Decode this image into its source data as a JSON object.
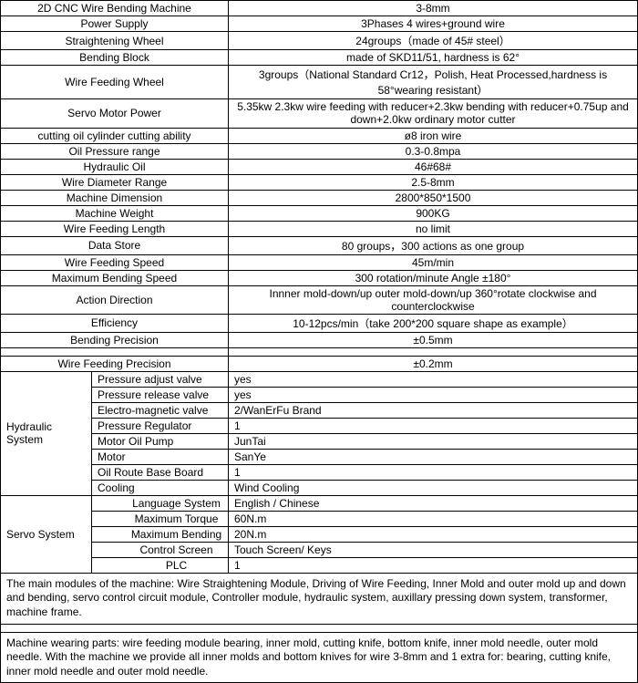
{
  "specs": [
    {
      "label": "2D CNC Wire Bending Machine",
      "value": "3-8mm"
    },
    {
      "label": "Power Supply",
      "value": "3Phases 4 wires+ground wire"
    },
    {
      "label": "Straightening Wheel",
      "value": "24groups（made of 45# steel）"
    },
    {
      "label": "Bending Block",
      "value": "made of SKD11/51, hardness is 62°"
    },
    {
      "label": "Wire Feeding Wheel",
      "value": "3groups（National Standard Cr12，Polish, Heat Processed,hardness is 58°wearing resistant）"
    },
    {
      "label": "Servo Motor Power",
      "value": "5.35kw  2.3kw wire feeding with reducer+2.3kw bending with reducer+0.75up and down+2.0kw ordinary motor cutter"
    },
    {
      "label": "cutting oil cylinder cutting ability",
      "value": "ø8 iron wire"
    },
    {
      "label": "Oil Pressure range",
      "value": "0.3-0.8mpa"
    },
    {
      "label": "Hydraulic Oil",
      "value": "46#68#"
    },
    {
      "label": "Wire Diameter Range",
      "value": "2.5-8mm"
    },
    {
      "label": "Machine Dimension",
      "value": "2800*850*1500"
    },
    {
      "label": "Machine Weight",
      "value": "900KG"
    },
    {
      "label": "Wire Feeding Length",
      "value": "no limit"
    },
    {
      "label": "Data Store",
      "value": "80 groups，300 actions as one group"
    },
    {
      "label": "Wire Feeding Speed",
      "value": "45m/min"
    },
    {
      "label": "Maximum Bending Speed",
      "value": "300 rotation/minute  Angle ±180°"
    },
    {
      "label": "Action Direction",
      "value": "Innner mold-down/up  outer mold-down/up  360°rotate clockwise and counterclockwise"
    },
    {
      "label": "Efficiency",
      "value": "10-12pcs/min（take 200*200 square shape as example）"
    },
    {
      "label": "Bending Precision",
      "value": "±0.5mm"
    },
    {
      "label": "Wire Feeding Precision",
      "value": "±0.2mm"
    }
  ],
  "hydraulic": {
    "title": "Hydraulic System",
    "items": [
      {
        "label": "Pressure adjust valve",
        "value": "yes"
      },
      {
        "label": "Pressure release valve",
        "value": "yes"
      },
      {
        "label": "Electro-magnetic valve",
        "value": "2/WanErFu Brand"
      },
      {
        "label": "Pressure Regulator",
        "value": "1"
      },
      {
        "label": "Motor Oil Pump",
        "value": "JunTai"
      },
      {
        "label": "Motor",
        "value": "SanYe"
      },
      {
        "label": "Oil Route Base Board",
        "value": "1"
      },
      {
        "label": "Cooling",
        "value": "Wind Cooling"
      }
    ]
  },
  "servo": {
    "title": "Servo System",
    "items": [
      {
        "label": "Language System",
        "value": "English / Chinese"
      },
      {
        "label": "Maximum Torque",
        "value": "60N.m"
      },
      {
        "label": "Maximum Bending",
        "value": "20N.m"
      },
      {
        "label": "Control Screen",
        "value": "Touch Screen/  Keys"
      },
      {
        "label": "PLC",
        "value": "1"
      }
    ]
  },
  "descriptions": {
    "modules": "The main modules of the machine: Wire Straightening Module, Driving of Wire Feeding, Inner Mold and outer mold up and down and bending, servo control circuit module, Controller module, hydraulic system, auxillary pressing down system, transformer, machine frame.",
    "wearing": " Machine wearing parts: wire feeding module bearing, inner mold, cutting knife, bottom knife, inner mold needle, outer mold needle. With the machine we provide all inner molds and bottom knives for wire 3-8mm and 1 extra for: bearing, cutting knife, inner mold needle and outer mold needle."
  }
}
